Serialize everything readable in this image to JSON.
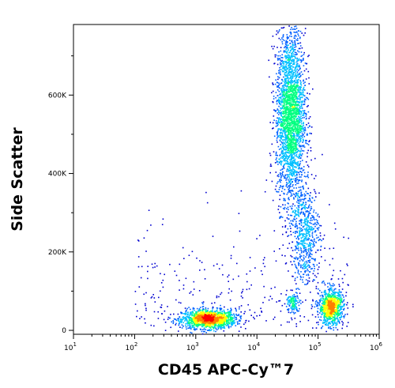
{
  "chart_data": {
    "type": "scatter",
    "style": "density-dot-plot",
    "title": "",
    "xlabel": "CD45 APC-Cy™7",
    "ylabel": "Side Scatter",
    "x_scale": "log",
    "xlim": [
      10,
      1000000
    ],
    "ylim": [
      -10000,
      780000
    ],
    "x_ticks": [
      {
        "value": 10,
        "base": "10",
        "exp": "1"
      },
      {
        "value": 100,
        "base": "10",
        "exp": "2"
      },
      {
        "value": 1000,
        "base": "10",
        "exp": "3"
      },
      {
        "value": 10000,
        "base": "10",
        "exp": "4"
      },
      {
        "value": 100000,
        "base": "10",
        "exp": "5"
      },
      {
        "value": 1000000,
        "base": "10",
        "exp": "6"
      }
    ],
    "y_ticks": [
      {
        "value": 0,
        "label": "0"
      },
      {
        "value": 200000,
        "label": "200K"
      },
      {
        "value": 400000,
        "label": "400K"
      },
      {
        "value": 600000,
        "label": "600K"
      }
    ],
    "grid": false,
    "density_colors": [
      "#0000d0",
      "#0060ff",
      "#00c0ff",
      "#00ff80",
      "#ffff00",
      "#ff8000",
      "#ff0000"
    ],
    "populations": [
      {
        "center_x": 1600,
        "center_y": 30000,
        "spread_log_x": 0.22,
        "spread_y": 12000,
        "points": 1400
      },
      {
        "center_x": 35000,
        "center_y": 550000,
        "spread_log_x": 0.12,
        "spread_y": 110000,
        "points": 2600
      },
      {
        "center_x": 160000,
        "center_y": 60000,
        "spread_log_x": 0.1,
        "spread_y": 22000,
        "points": 900
      },
      {
        "center_x": 60000,
        "center_y": 250000,
        "spread_log_x": 0.12,
        "spread_y": 60000,
        "points": 600
      },
      {
        "center_x": 38000,
        "center_y": 70000,
        "spread_log_x": 0.05,
        "spread_y": 15000,
        "points": 120
      }
    ]
  }
}
